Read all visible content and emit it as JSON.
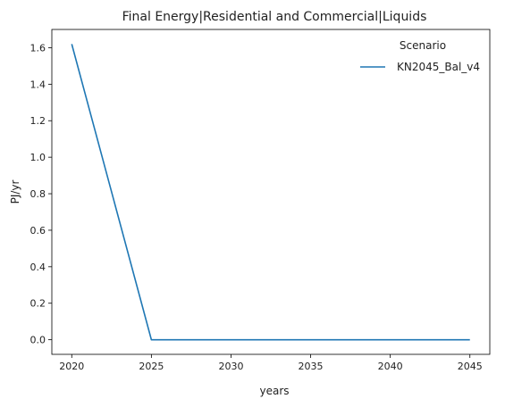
{
  "chart_data": {
    "type": "line",
    "title": "Final Energy|Residential and Commercial|Liquids",
    "xlabel": "years",
    "ylabel": "PJ/yr",
    "x": [
      2020,
      2025,
      2030,
      2035,
      2040,
      2045
    ],
    "series": [
      {
        "name": "KN2045_Bal_v4",
        "color": "#1f77b4",
        "values": [
          1.62,
          0.0,
          0.0,
          0.0,
          0.0,
          0.0
        ]
      }
    ],
    "xlim": [
      2018.75,
      2046.25
    ],
    "ylim": [
      -0.08,
      1.7
    ],
    "xticks": [
      2020,
      2025,
      2030,
      2035,
      2040,
      2045
    ],
    "yticks": [
      0.0,
      0.2,
      0.4,
      0.6,
      0.8,
      1.0,
      1.2,
      1.4,
      1.6
    ],
    "legend": {
      "title": "Scenario",
      "placement": "top-right"
    },
    "grid": false
  }
}
